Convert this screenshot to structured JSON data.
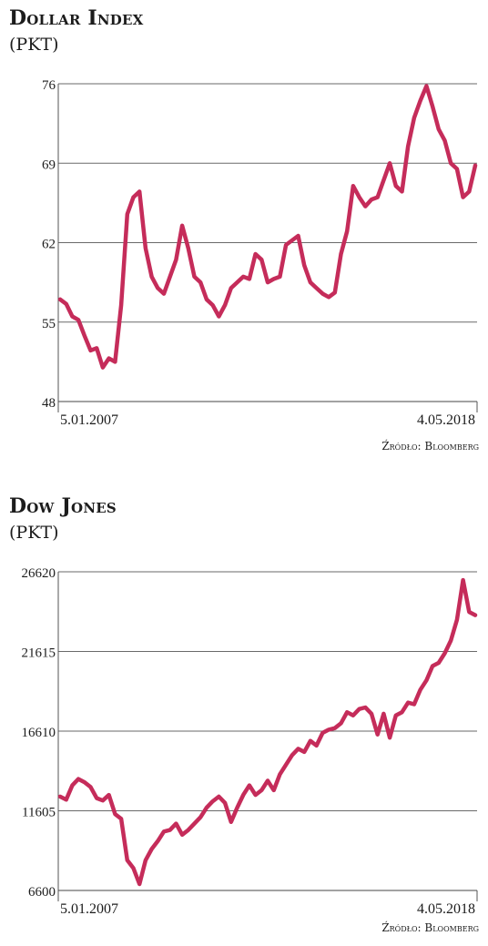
{
  "chart_data": [
    {
      "type": "line",
      "title": "Dollar Index",
      "unit": "(PKT)",
      "ylim": [
        48,
        76
      ],
      "yticks": [
        "76",
        "69",
        "62",
        "55",
        "48"
      ],
      "x_start_label": "5.01.2007",
      "x_end_label": "4.05.2018",
      "source": "Źródło: Bloomberg",
      "color": "#c52c5a",
      "series": [
        {
          "name": "",
          "x": [
            "2007-01",
            "2007-03",
            "2007-05",
            "2007-07",
            "2007-09",
            "2007-11",
            "2008-01",
            "2008-03",
            "2008-05",
            "2008-07",
            "2008-09",
            "2008-11",
            "2009-01",
            "2009-03",
            "2009-05",
            "2009-07",
            "2009-09",
            "2009-11",
            "2010-01",
            "2010-03",
            "2010-05",
            "2010-07",
            "2010-09",
            "2010-11",
            "2011-01",
            "2011-03",
            "2011-05",
            "2011-07",
            "2011-09",
            "2011-11",
            "2012-01",
            "2012-03",
            "2012-05",
            "2012-07",
            "2012-09",
            "2012-11",
            "2013-01",
            "2013-03",
            "2013-05",
            "2013-07",
            "2013-09",
            "2013-11",
            "2014-01",
            "2014-03",
            "2014-05",
            "2014-07",
            "2014-09",
            "2014-11",
            "2015-01",
            "2015-03",
            "2015-05",
            "2015-07",
            "2015-09",
            "2015-11",
            "2016-01",
            "2016-03",
            "2016-05",
            "2016-07",
            "2016-09",
            "2016-11",
            "2017-01",
            "2017-03",
            "2017-05",
            "2017-07",
            "2017-09",
            "2017-11",
            "2018-01",
            "2018-03",
            "2018-05"
          ],
          "values": [
            57.0,
            56.6,
            55.5,
            55.2,
            53.8,
            52.5,
            52.7,
            51.0,
            51.8,
            51.5,
            56.5,
            64.5,
            66.0,
            66.5,
            61.5,
            59.0,
            58.0,
            57.5,
            59.0,
            60.5,
            63.5,
            61.5,
            59.0,
            58.5,
            57.0,
            56.5,
            55.5,
            56.5,
            58.0,
            58.5,
            59.0,
            58.8,
            61.0,
            60.5,
            58.5,
            58.8,
            59.0,
            61.8,
            62.2,
            62.6,
            60.0,
            58.5,
            58.0,
            57.5,
            57.2,
            57.6,
            61.0,
            63.0,
            67.0,
            66.0,
            65.2,
            65.8,
            66.0,
            67.5,
            69.0,
            67.0,
            66.5,
            70.5,
            73.0,
            74.5,
            75.8,
            74.0,
            72.0,
            71.0,
            69.0,
            68.5,
            66.0,
            66.5,
            68.8
          ]
        }
      ]
    },
    {
      "type": "line",
      "title": "Dow Jones",
      "unit": "(PKT)",
      "ylim": [
        6600,
        26620
      ],
      "yticks": [
        "26620",
        "21615",
        "16610",
        "11605",
        "6600"
      ],
      "x_start_label": "5.01.2007",
      "x_end_label": "4.05.2018",
      "source": "Źródło: Bloomberg",
      "color": "#c52c5a",
      "series": [
        {
          "name": "",
          "x": [
            "2007-01",
            "2007-03",
            "2007-05",
            "2007-07",
            "2007-09",
            "2007-11",
            "2008-01",
            "2008-03",
            "2008-05",
            "2008-07",
            "2008-09",
            "2008-11",
            "2009-01",
            "2009-03",
            "2009-05",
            "2009-07",
            "2009-09",
            "2009-11",
            "2010-01",
            "2010-03",
            "2010-05",
            "2010-07",
            "2010-09",
            "2010-11",
            "2011-01",
            "2011-03",
            "2011-05",
            "2011-07",
            "2011-09",
            "2011-11",
            "2012-01",
            "2012-03",
            "2012-05",
            "2012-07",
            "2012-09",
            "2012-11",
            "2013-01",
            "2013-03",
            "2013-05",
            "2013-07",
            "2013-09",
            "2013-11",
            "2014-01",
            "2014-03",
            "2014-05",
            "2014-07",
            "2014-09",
            "2014-11",
            "2015-01",
            "2015-03",
            "2015-05",
            "2015-07",
            "2015-09",
            "2015-11",
            "2016-01",
            "2016-03",
            "2016-05",
            "2016-07",
            "2016-09",
            "2016-11",
            "2017-01",
            "2017-03",
            "2017-05",
            "2017-07",
            "2017-09",
            "2017-11",
            "2018-01",
            "2018-03",
            "2018-05"
          ],
          "values": [
            12500,
            12300,
            13200,
            13600,
            13400,
            13100,
            12400,
            12250,
            12600,
            11400,
            11100,
            8500,
            8000,
            7000,
            8500,
            9200,
            9700,
            10300,
            10400,
            10800,
            10100,
            10400,
            10800,
            11200,
            11800,
            12200,
            12500,
            12100,
            10900,
            11800,
            12600,
            13200,
            12600,
            12900,
            13500,
            12900,
            13900,
            14500,
            15100,
            15500,
            15300,
            16000,
            15700,
            16500,
            16700,
            16800,
            17100,
            17800,
            17600,
            18000,
            18100,
            17700,
            16400,
            17700,
            16200,
            17600,
            17800,
            18400,
            18300,
            19200,
            19800,
            20700,
            20900,
            21500,
            22300,
            23600,
            26100,
            24100,
            23900
          ]
        }
      ]
    }
  ]
}
